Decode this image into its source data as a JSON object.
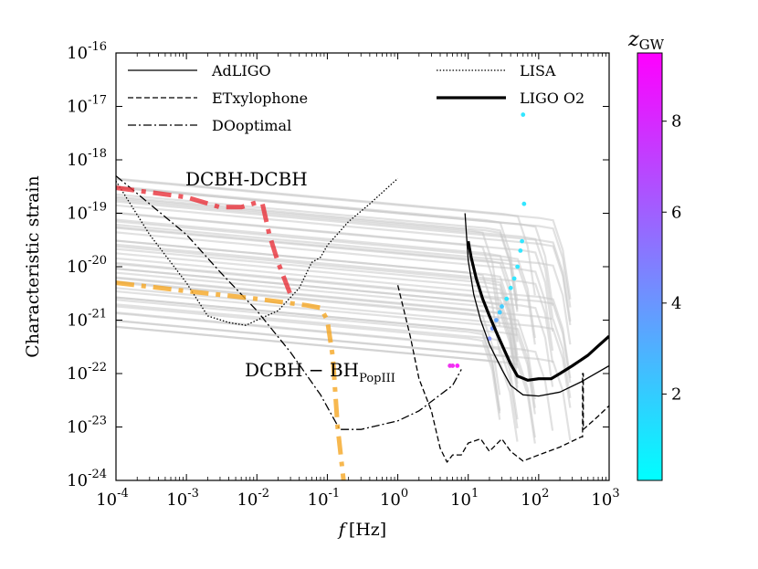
{
  "chart_data": {
    "type": "line",
    "xscale": "log",
    "yscale": "log",
    "xlim": [
      0.0001,
      1000
    ],
    "ylim": [
      1e-24,
      1e-16
    ],
    "xlabel_symbol": "f",
    "xlabel_unit": "[Hz]",
    "ylabel": "Characteristic strain",
    "x_tick_exponents": [
      "-4",
      "-3",
      "-2",
      "-1",
      "0",
      "1",
      "2",
      "3"
    ],
    "y_tick_exponents": [
      "-24",
      "-23",
      "-22",
      "-21",
      "-20",
      "-19",
      "-18",
      "-17",
      "-16"
    ],
    "tick_base": "10",
    "colorbar": {
      "label_main": "z",
      "label_sub": "GW",
      "range": [
        0.1,
        9.5
      ],
      "ticks": [
        "2",
        "4",
        "6",
        "8"
      ],
      "tick_values": [
        2,
        4,
        6,
        8
      ],
      "color_low": "#00ffff",
      "color_high": "#ff00ff"
    },
    "legend": [
      {
        "label": "AdLIGO",
        "style": "solid"
      },
      {
        "label": "ETxylophone",
        "style": "dashed"
      },
      {
        "label": "DOoptimal",
        "style": "dashdot"
      },
      {
        "label": "LISA",
        "style": "dotted"
      },
      {
        "label": "LIGO O2",
        "style": "solid-thick"
      }
    ],
    "annotations": {
      "dcbh_dcbh": {
        "text": "DCBH-DCBH",
        "color": "#e8313a"
      },
      "dcbh_bh": {
        "text_main": "DCBH − BH",
        "text_sub": "PopIII",
        "color": "#f5a623"
      }
    },
    "series": [
      {
        "name": "AdLIGO",
        "style": "solid",
        "color": "#000000",
        "points": [
          [
            9,
            1e-19
          ],
          [
            10,
            1.3e-20
          ],
          [
            12,
            3e-21
          ],
          [
            15,
            1e-21
          ],
          [
            20,
            3.5e-22
          ],
          [
            30,
            1.2e-22
          ],
          [
            40,
            6e-23
          ],
          [
            60,
            4e-23
          ],
          [
            100,
            3.8e-23
          ],
          [
            200,
            4.5e-23
          ],
          [
            400,
            7e-23
          ],
          [
            1000,
            1.4e-22
          ]
        ]
      },
      {
        "name": "ETxylophone",
        "style": "dashed",
        "color": "#000000",
        "points": [
          [
            1,
            4.5e-21
          ],
          [
            1.5,
            5e-22
          ],
          [
            2,
            8e-23
          ],
          [
            3,
            2e-23
          ],
          [
            4,
            4e-24
          ],
          [
            5,
            2.2e-24
          ],
          [
            6,
            3e-24
          ],
          [
            8,
            3e-24
          ],
          [
            10,
            5e-24
          ],
          [
            15,
            6e-24
          ],
          [
            20,
            3.5e-24
          ],
          [
            30,
            6e-24
          ],
          [
            40,
            3.5e-24
          ],
          [
            60,
            2.3e-24
          ],
          [
            100,
            3e-24
          ],
          [
            200,
            4.2e-24
          ],
          [
            400,
            6.5e-24
          ],
          [
            420,
            6.5e-24
          ],
          [
            420,
            1e-22
          ],
          [
            430,
            1e-22
          ],
          [
            430,
            9e-24
          ],
          [
            700,
            1.6e-23
          ],
          [
            1000,
            2.5e-23
          ]
        ]
      },
      {
        "name": "DOoptimal",
        "style": "dashdot",
        "color": "#000000",
        "points": [
          [
            0.0001,
            5e-19
          ],
          [
            0.0003,
            1.5e-19
          ],
          [
            0.001,
            4e-20
          ],
          [
            0.003,
            8e-21
          ],
          [
            0.01,
            1.5e-21
          ],
          [
            0.03,
            2.5e-22
          ],
          [
            0.08,
            4e-23
          ],
          [
            0.15,
            9e-24
          ],
          [
            0.3,
            9e-24
          ],
          [
            1,
            1.3e-23
          ],
          [
            2,
            2e-23
          ],
          [
            4,
            4e-23
          ],
          [
            6,
            6e-23
          ],
          [
            8,
            1.2e-22
          ]
        ]
      },
      {
        "name": "LISA",
        "style": "dotted",
        "color": "#000000",
        "points": [
          [
            0.0001,
            4e-19
          ],
          [
            0.0003,
            4e-20
          ],
          [
            0.001,
            5e-21
          ],
          [
            0.002,
            1.2e-21
          ],
          [
            0.004,
            9e-22
          ],
          [
            0.007,
            8e-22
          ],
          [
            0.01,
            1e-21
          ],
          [
            0.02,
            1.5e-21
          ],
          [
            0.04,
            4e-21
          ],
          [
            0.06,
            1.2e-20
          ],
          [
            0.08,
            1.5e-20
          ],
          [
            0.1,
            2.5e-20
          ],
          [
            0.2,
            7e-20
          ],
          [
            0.4,
            1.5e-19
          ],
          [
            1,
            4.5e-19
          ]
        ]
      },
      {
        "name": "LIGO O2",
        "style": "solid-thick",
        "color": "#000000",
        "points": [
          [
            10,
            3e-20
          ],
          [
            11,
            1.5e-20
          ],
          [
            13,
            6e-21
          ],
          [
            16,
            2.5e-21
          ],
          [
            20,
            1.2e-21
          ],
          [
            25,
            6e-22
          ],
          [
            30,
            3.5e-22
          ],
          [
            40,
            1.5e-22
          ],
          [
            50,
            9e-23
          ],
          [
            70,
            7.5e-23
          ],
          [
            100,
            8e-23
          ],
          [
            150,
            8e-23
          ],
          [
            200,
            1e-22
          ],
          [
            300,
            1.4e-22
          ],
          [
            500,
            2.2e-22
          ],
          [
            700,
            3.3e-22
          ],
          [
            1000,
            5e-22
          ]
        ]
      },
      {
        "name": "DCBH-DCBH",
        "style": "dashdot-thick",
        "color": "#e8313a",
        "points": [
          [
            0.0001,
            3e-19
          ],
          [
            0.001,
            2e-19
          ],
          [
            0.003,
            1.3e-19
          ],
          [
            0.006,
            1.3e-19
          ],
          [
            0.01,
            1.6e-19
          ],
          [
            0.012,
            1.5e-19
          ],
          [
            0.015,
            4e-20
          ],
          [
            0.02,
            1.2e-20
          ],
          [
            0.03,
            3e-21
          ]
        ]
      },
      {
        "name": "DCBH-BH_PopIII",
        "style": "dashdot-thick",
        "color": "#f5a623",
        "points": [
          [
            0.0001,
            5e-21
          ],
          [
            0.001,
            3.5e-21
          ],
          [
            0.01,
            2.5e-21
          ],
          [
            0.05,
            1.9e-21
          ],
          [
            0.08,
            1.7e-21
          ],
          [
            0.1,
            1e-21
          ],
          [
            0.12,
            2e-22
          ],
          [
            0.14,
            1e-23
          ],
          [
            0.17,
            1e-24
          ]
        ]
      }
    ]
  }
}
